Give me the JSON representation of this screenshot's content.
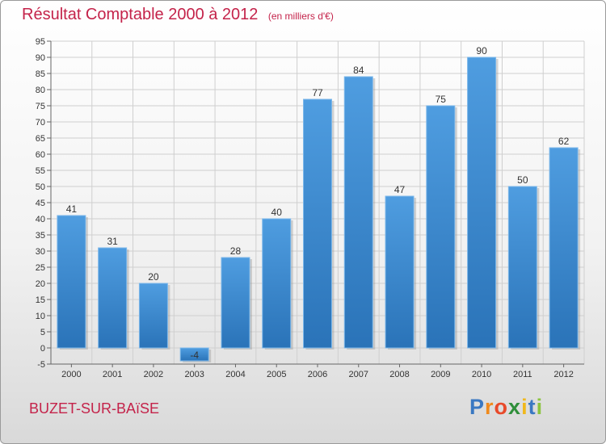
{
  "chart_data": {
    "type": "bar",
    "title": "Résultat Comptable 2000 à 2012",
    "subtitle": "(en milliers d'€)",
    "categories": [
      "2000",
      "2001",
      "2002",
      "2003",
      "2004",
      "2005",
      "2006",
      "2007",
      "2008",
      "2009",
      "2010",
      "2011",
      "2012"
    ],
    "values": [
      41,
      31,
      20,
      -4,
      28,
      40,
      77,
      84,
      47,
      75,
      90,
      50,
      62
    ],
    "value_labels": [
      "41",
      "31",
      "20",
      "-4",
      "28",
      "40",
      "77",
      "84",
      "47",
      "75",
      "90",
      "50",
      "62"
    ],
    "ylim": [
      -5,
      95
    ],
    "yticks": [
      -5,
      0,
      5,
      10,
      15,
      20,
      25,
      30,
      35,
      40,
      45,
      50,
      55,
      60,
      65,
      70,
      75,
      80,
      85,
      90,
      95
    ],
    "grid": true,
    "legend": "none",
    "bar_color": "#4f9de0",
    "bar_color_dark": "#2a73b8"
  },
  "commune": "BUZET-SUR-BAïSE",
  "logo": {
    "letters": [
      {
        "ch": "P",
        "color": "#3a78c2"
      },
      {
        "ch": "r",
        "color": "#f08a1c"
      },
      {
        "ch": "o",
        "color": "#e84a2a"
      },
      {
        "ch": "x",
        "color": "#2f8f3a"
      },
      {
        "ch": "i",
        "color": "#f0b81c"
      },
      {
        "ch": "t",
        "color": "#3a78c2"
      },
      {
        "ch": "i",
        "color": "#8bc43f"
      }
    ]
  },
  "colors": {
    "title": "#c4234a",
    "grid": "#cfcfcf"
  }
}
